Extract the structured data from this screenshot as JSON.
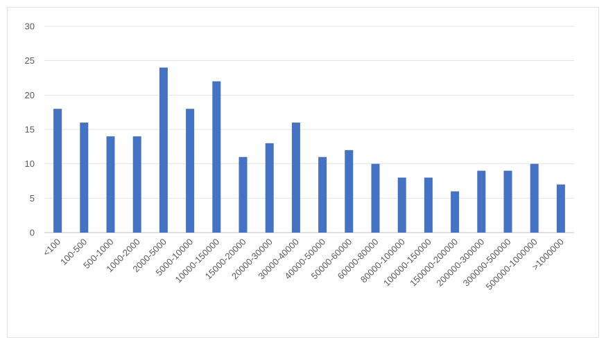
{
  "chart_data": {
    "type": "bar",
    "title": "",
    "xlabel": "",
    "ylabel": "",
    "ylim": [
      0,
      30
    ],
    "yticks": [
      0,
      5,
      10,
      15,
      20,
      25,
      30
    ],
    "grid": true,
    "legend": "none",
    "bar_color": "#4472c4",
    "categories": [
      "<100",
      "100-500",
      "500-1000",
      "1000-2000",
      "2000-5000",
      "5000-10000",
      "10000-150000",
      "15000-20000",
      "20000-30000",
      "30000-40000",
      "40000-50000",
      "50000-60000",
      "60000-80000",
      "80000-100000",
      "100000-150000",
      "150000-200000",
      "200000-300000",
      "300000-500000",
      "500000-1000000",
      ">1000000"
    ],
    "values": [
      18,
      16,
      14,
      14,
      24,
      18,
      22,
      11,
      13,
      16,
      11,
      12,
      10,
      8,
      8,
      6,
      9,
      9,
      10,
      7
    ]
  }
}
